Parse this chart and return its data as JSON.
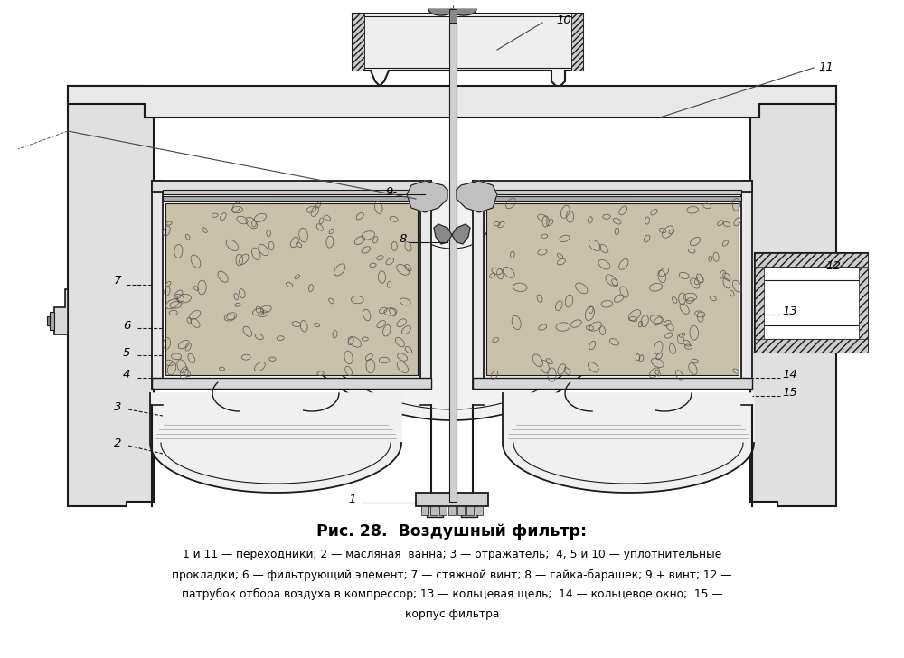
{
  "title": "Рис. 28.  Воздушный фильтр:",
  "caption_line1": "1 и 11 — переходники; 2 — масляная  ванна; 3 — отражатель;  4, 5 и 10 — уплотнительные",
  "caption_line2": "прокладки; 6 — фильтрующий элемент; 7 — стяжной винт; 8 — гайка-барашек; 9 + винт; 12 —",
  "caption_line3": "патрубок отбора воздуха в компрессор; 13 — кольцевая щель;  14 — кольцевое окно;  15 —",
  "caption_line4": "корпус фильтра",
  "bg_color": "#ffffff",
  "lc": "#1a1a1a",
  "wall_fill": "#e8e8e8",
  "mesh_fill": "#c8c0a8",
  "bowl_fill": "#f0f0f0"
}
